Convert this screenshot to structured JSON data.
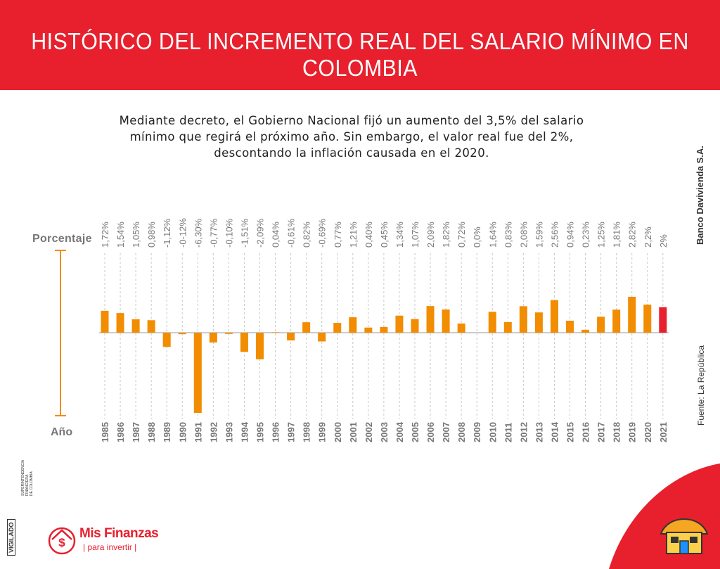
{
  "header": {
    "title": "HISTÓRICO DEL INCREMENTO REAL DEL SALARIO MÍNIMO EN COLOMBIA"
  },
  "subtitle": {
    "line1": "Mediante decreto, el Gobierno Nacional fijó un aumento del 3,5% del salario",
    "line2": "mínimo que regirá el próximo año. Sin embargo, el valor real fue del 2%,",
    "line3": "descontando la inflación causada en el 2020."
  },
  "side": {
    "bank": "Banco Davivienda S.A.",
    "source": "Fuente: La República"
  },
  "footer": {
    "vigilado": "VIGILADO",
    "superfin_line1": "SUPERINTENDENCIA FINANCIERA",
    "superfin_line2": "DE COLOMBIA",
    "logo_title": "Mis Finanzas",
    "logo_sub": "| para invertir |"
  },
  "colors": {
    "header": "#e8202e",
    "bar": "#f28c00",
    "highlight": "#e8202e"
  },
  "chart_data": {
    "type": "bar",
    "ylabel": "Porcentaje",
    "xlabel": "Año",
    "categories": [
      "1985",
      "1986",
      "1987",
      "1988",
      "1989",
      "1990",
      "1991",
      "1992",
      "1993",
      "1994",
      "1995",
      "1996",
      "1997",
      "1998",
      "1999",
      "2000",
      "2001",
      "2002",
      "2003",
      "2004",
      "2005",
      "2006",
      "2007",
      "2008",
      "2009",
      "2010",
      "2011",
      "2012",
      "2013",
      "2014",
      "2015",
      "2016",
      "2017",
      "2018",
      "2019",
      "2020",
      "2021"
    ],
    "values": [
      1.72,
      1.54,
      1.05,
      0.98,
      -1.12,
      -0.12,
      -6.3,
      -0.77,
      -0.1,
      -1.51,
      -2.09,
      0.04,
      -0.61,
      0.82,
      -0.69,
      0.77,
      1.21,
      0.4,
      0.45,
      1.34,
      1.07,
      2.09,
      1.82,
      0.72,
      0.0,
      1.64,
      0.83,
      2.08,
      1.59,
      2.56,
      0.94,
      0.23,
      1.25,
      1.81,
      2.82,
      2.2,
      2.0
    ],
    "value_labels": [
      "1,72%",
      "1,54%",
      "1,05%",
      "0,98%",
      "-1,12%",
      "-0-12%",
      "-6,30%",
      "-0,77%",
      "-0,10%",
      "-1,51%",
      "-2,09%",
      "0,04%",
      "-0,61%",
      "0,82%",
      "-0,69%",
      "0,77%",
      "1,21%",
      "0,40%",
      "0,45%",
      "1,34%",
      "1,07%",
      "2,09%",
      "1,82%",
      "0,72%",
      "0,0%",
      "1,64%",
      "0,83%",
      "2,08%",
      "1,59%",
      "2,56%",
      "0,94%",
      "0,23%",
      "1,25%",
      "1,81%",
      "2,82%",
      "2,2%",
      "2%"
    ],
    "highlight_category": "2021"
  }
}
